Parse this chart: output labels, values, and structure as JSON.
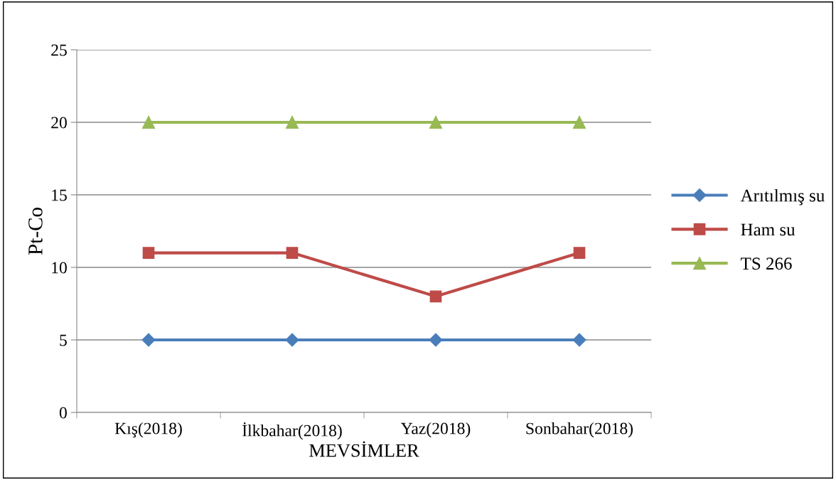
{
  "chart_data": {
    "type": "line",
    "xlabel": "MEVSİMLER",
    "ylabel": "Pt-Co",
    "categories": [
      "Kış(2018)",
      "İlkbahar(2018)",
      "Yaz(2018)",
      "Sonbahar(2018)"
    ],
    "series": [
      {
        "name": "Arıtılmış su",
        "color": "#4a7ebb",
        "marker": "diamond",
        "values": [
          5,
          5,
          5,
          5
        ]
      },
      {
        "name": "Ham su",
        "color": "#be4b48",
        "marker": "square",
        "values": [
          11,
          11,
          8,
          11
        ]
      },
      {
        "name": "TS 266",
        "color": "#98b954",
        "marker": "triangle",
        "values": [
          20,
          20,
          20,
          20
        ]
      }
    ],
    "ylim": [
      0,
      25
    ],
    "yticks": [
      0,
      5,
      10,
      15,
      20,
      25
    ],
    "grid": "y",
    "legend": "right",
    "line_style": "solid"
  }
}
